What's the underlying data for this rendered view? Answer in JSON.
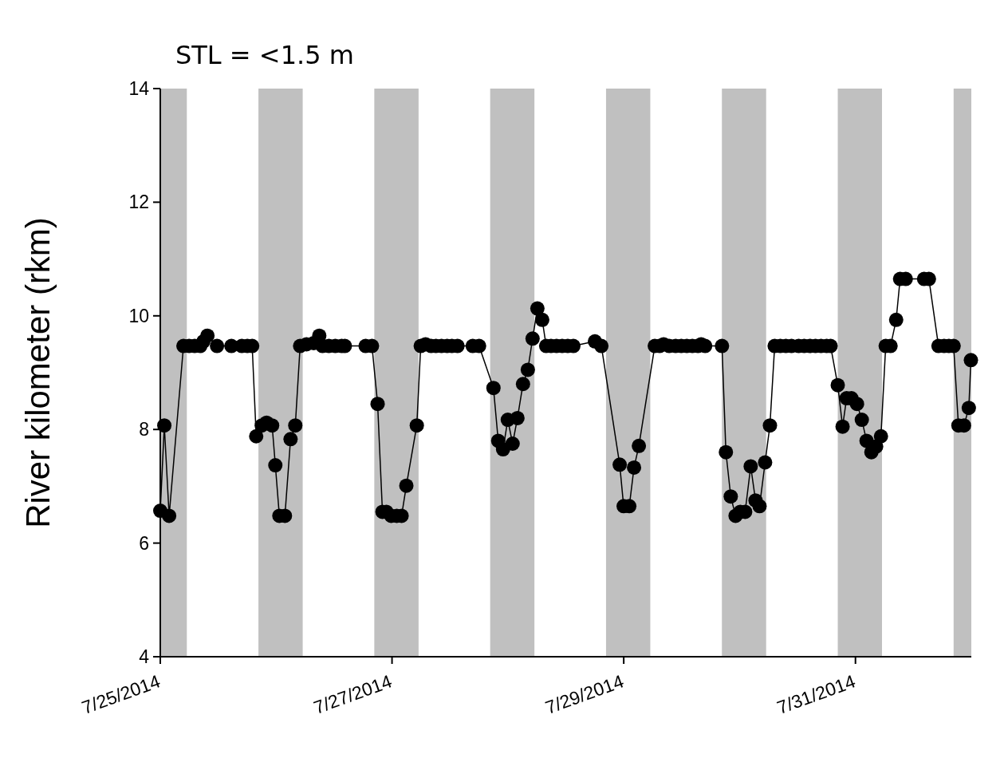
{
  "chart_data": {
    "type": "line",
    "title": "STL = <1.5 m",
    "ylabel": "River kilometer (rkm)",
    "xlim": [
      "2014-07-25",
      "2014-08-01"
    ],
    "xticks": [
      {
        "value": "2014-07-25",
        "label": "7/25/2014"
      },
      {
        "value": "2014-07-27",
        "label": "7/27/2014"
      },
      {
        "value": "2014-07-29",
        "label": "7/29/2014"
      },
      {
        "value": "2014-07-31",
        "label": "7/31/2014"
      }
    ],
    "ylim": [
      4,
      14
    ],
    "yticks": [
      4,
      6,
      8,
      10,
      12,
      14
    ],
    "grid": false,
    "marker": "circle",
    "line_style": "solid",
    "bands": [
      {
        "axis": "x",
        "from": "2014-07-25T00:00",
        "to": "2014-07-25T05:30",
        "color": "#c0c0c0"
      },
      {
        "axis": "x",
        "from": "2014-07-25T20:20",
        "to": "2014-07-26T05:30",
        "color": "#c0c0c0"
      },
      {
        "axis": "x",
        "from": "2014-07-26T20:20",
        "to": "2014-07-27T05:30",
        "color": "#c0c0c0"
      },
      {
        "axis": "x",
        "from": "2014-07-27T20:20",
        "to": "2014-07-28T05:30",
        "color": "#c0c0c0"
      },
      {
        "axis": "x",
        "from": "2014-07-28T20:20",
        "to": "2014-07-29T05:30",
        "color": "#c0c0c0"
      },
      {
        "axis": "x",
        "from": "2014-07-29T20:20",
        "to": "2014-07-30T05:30",
        "color": "#c0c0c0"
      },
      {
        "axis": "x",
        "from": "2014-07-30T20:20",
        "to": "2014-07-31T05:30",
        "color": "#c0c0c0"
      },
      {
        "axis": "x",
        "from": "2014-07-31T20:20",
        "to": "2014-08-01T00:00",
        "color": "#c0c0c0"
      }
    ],
    "series": [
      {
        "color": "#000000",
        "x": [
          "2014-07-25T00:00",
          "2014-07-25T00:50",
          "2014-07-25T01:50",
          "2014-07-25T04:48",
          "2014-07-25T05:58",
          "2014-07-25T07:07",
          "2014-07-25T08:17",
          "2014-07-25T08:56",
          "2014-07-25T09:46",
          "2014-07-25T11:45",
          "2014-07-25T14:44",
          "2014-07-25T16:53",
          "2014-07-25T18:02",
          "2014-07-25T19:02",
          "2014-07-25T19:52",
          "2014-07-25T21:01",
          "2014-07-25T22:01",
          "2014-07-25T23:10",
          "2014-07-25T23:50",
          "2014-07-26T00:40",
          "2014-07-26T01:49",
          "2014-07-26T02:59",
          "2014-07-26T03:58",
          "2014-07-26T04:58",
          "2014-07-26T06:17",
          "2014-07-26T07:47",
          "2014-07-26T08:56",
          "2014-07-26T09:36",
          "2014-07-26T10:55",
          "2014-07-26T12:15",
          "2014-07-26T13:34",
          "2014-07-26T14:14",
          "2014-07-26T18:32",
          "2014-07-26T19:51",
          "2014-07-26T21:01",
          "2014-07-26T22:01",
          "2014-07-26T22:50",
          "2014-07-26T23:50",
          "2014-07-27T00:59",
          "2014-07-27T01:59",
          "2014-07-27T02:58",
          "2014-07-27T05:08",
          "2014-07-27T05:57",
          "2014-07-27T06:57",
          "2014-07-27T08:06",
          "2014-07-27T09:06",
          "2014-07-27T10:15",
          "2014-07-27T11:25",
          "2014-07-27T12:24",
          "2014-07-27T13:34",
          "2014-07-27T16:43",
          "2014-07-27T18:02",
          "2014-07-27T21:01",
          "2014-07-27T22:00",
          "2014-07-27T23:00",
          "2014-07-27T23:59",
          "2014-07-28T00:59",
          "2014-07-28T01:59",
          "2014-07-28T03:08",
          "2014-07-28T04:08",
          "2014-07-28T05:07",
          "2014-07-28T06:07",
          "2014-07-28T07:07",
          "2014-07-28T07:56",
          "2014-07-28T08:56",
          "2014-07-28T10:05",
          "2014-07-28T11:15",
          "2014-07-28T12:24",
          "2014-07-28T13:34",
          "2014-07-28T18:02",
          "2014-07-28T19:22",
          "2014-07-28T23:10",
          "2014-07-28T23:59",
          "2014-07-29T01:09",
          "2014-07-29T02:08",
          "2014-07-29T03:08",
          "2014-07-29T06:26",
          "2014-07-29T07:26",
          "2014-07-29T08:16",
          "2014-07-29T09:25",
          "2014-07-29T10:45",
          "2014-07-29T11:55",
          "2014-07-29T13:04",
          "2014-07-29T14:13",
          "2014-07-29T15:23",
          "2014-07-29T16:02",
          "2014-07-29T16:52",
          "2014-07-29T20:21",
          "2014-07-29T21:10",
          "2014-07-29T22:10",
          "2014-07-29T23:10",
          "2014-07-30T00:09",
          "2014-07-30T01:09",
          "2014-07-30T02:18",
          "2014-07-30T03:18",
          "2014-07-30T04:08",
          "2014-07-30T05:17",
          "2014-07-30T06:17",
          "2014-07-30T07:16",
          "2014-07-30T08:26",
          "2014-07-30T09:35",
          "2014-07-30T10:45",
          "2014-07-30T12:14",
          "2014-07-30T13:23",
          "2014-07-30T14:33",
          "2014-07-30T15:43",
          "2014-07-30T16:52",
          "2014-07-30T18:02",
          "2014-07-30T18:51",
          "2014-07-30T20:20",
          "2014-07-30T21:20",
          "2014-07-30T22:10",
          "2014-07-30T23:10",
          "2014-07-31T00:19",
          "2014-07-31T01:19",
          "2014-07-31T02:18",
          "2014-07-31T03:18",
          "2014-07-31T04:17",
          "2014-07-31T05:17",
          "2014-07-31T06:16",
          "2014-07-31T07:16",
          "2014-07-31T08:26",
          "2014-07-31T09:15",
          "2014-07-31T10:25",
          "2014-07-31T14:13",
          "2014-07-31T15:13",
          "2014-07-31T17:12",
          "2014-07-31T18:22",
          "2014-07-31T19:21",
          "2014-07-31T20:20",
          "2014-07-31T21:20",
          "2014-07-31T22:29",
          "2014-07-31T23:29",
          "2014-07-31T23:55"
        ],
        "values": [
          6.57,
          8.07,
          6.48,
          9.47,
          9.47,
          9.47,
          9.47,
          9.55,
          9.65,
          9.47,
          9.47,
          9.47,
          9.47,
          9.47,
          7.88,
          8.07,
          8.12,
          8.07,
          7.37,
          6.48,
          6.48,
          7.83,
          8.07,
          9.47,
          9.5,
          9.52,
          9.65,
          9.47,
          9.47,
          9.47,
          9.47,
          9.47,
          9.47,
          9.47,
          8.45,
          6.55,
          6.55,
          6.48,
          6.48,
          6.48,
          7.01,
          8.07,
          9.47,
          9.5,
          9.47,
          9.47,
          9.47,
          9.47,
          9.47,
          9.47,
          9.47,
          9.47,
          8.73,
          7.8,
          7.65,
          8.17,
          7.75,
          8.2,
          8.8,
          9.05,
          9.6,
          10.13,
          9.93,
          9.47,
          9.47,
          9.47,
          9.47,
          9.47,
          9.47,
          9.55,
          9.47,
          7.38,
          6.65,
          6.65,
          7.33,
          7.71,
          9.47,
          9.47,
          9.5,
          9.47,
          9.47,
          9.47,
          9.47,
          9.47,
          9.47,
          9.5,
          9.47,
          9.47,
          7.6,
          6.82,
          6.48,
          6.55,
          6.55,
          7.35,
          6.75,
          6.65,
          7.42,
          8.07,
          9.47,
          9.47,
          9.47,
          9.47,
          9.47,
          9.47,
          9.47,
          9.47,
          9.47,
          9.47,
          9.47,
          8.78,
          8.05,
          8.55,
          8.55,
          8.45,
          8.17,
          7.8,
          7.6,
          7.7,
          7.88,
          9.47,
          9.47,
          9.93,
          10.65,
          10.65,
          10.65,
          10.65,
          9.47,
          9.47,
          9.47,
          9.47,
          8.07,
          8.07,
          8.38,
          9.22
        ]
      }
    ]
  }
}
